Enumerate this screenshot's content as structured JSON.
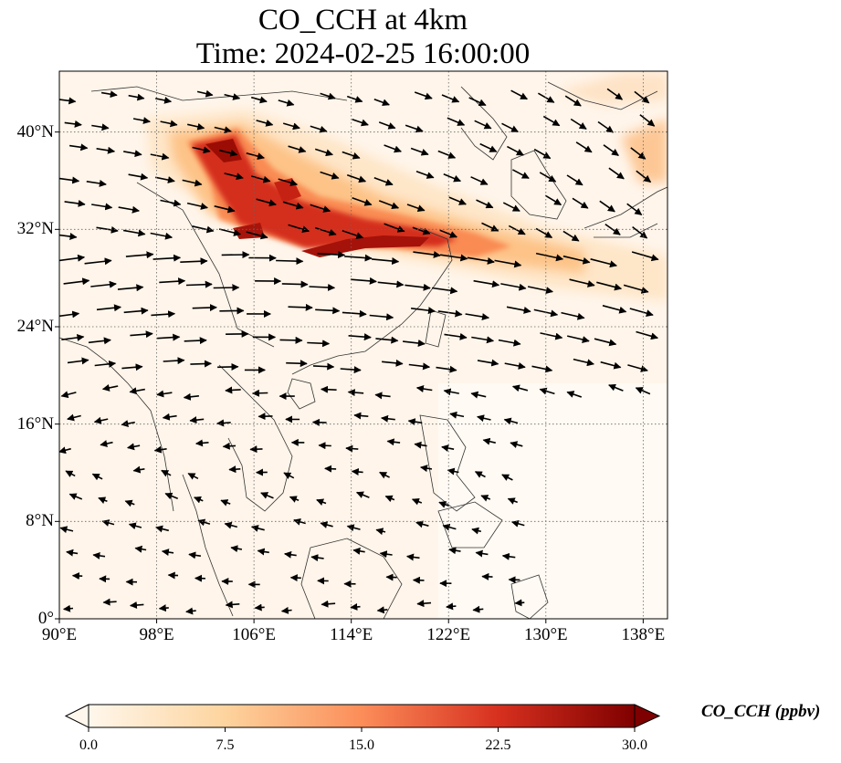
{
  "title": "CO_CCH at 4km",
  "subtitle": "Time: 2024-02-25 16:00:00",
  "map": {
    "lon_range": [
      90,
      140
    ],
    "lat_range": [
      0,
      45
    ],
    "x_ticks": [
      {
        "lon": 90,
        "label": "90°E"
      },
      {
        "lon": 98,
        "label": "98°E"
      },
      {
        "lon": 106,
        "label": "106°E"
      },
      {
        "lon": 114,
        "label": "114°E"
      },
      {
        "lon": 122,
        "label": "122°E"
      },
      {
        "lon": 130,
        "label": "130°E"
      },
      {
        "lon": 138,
        "label": "138°E"
      }
    ],
    "y_ticks": [
      {
        "lat": 0,
        "label": "0°"
      },
      {
        "lat": 8,
        "label": "8°N"
      },
      {
        "lat": 16,
        "label": "16°N"
      },
      {
        "lat": 24,
        "label": "24°N"
      },
      {
        "lat": 32,
        "label": "32°N"
      },
      {
        "lat": 40,
        "label": "40°N"
      }
    ],
    "gridlines": true,
    "wind_vectors": true,
    "plume_description_levels_ppbv": [
      7.5,
      15,
      22.5,
      30
    ]
  },
  "colorbar": {
    "label": "CO_CCH (ppbv)",
    "min": 0,
    "max": 30,
    "extend": "both",
    "colormap": "OrRd",
    "ticks": [
      {
        "value": 0,
        "label": "0.0"
      },
      {
        "value": 7.5,
        "label": "7.5"
      },
      {
        "value": 15,
        "label": "15.0"
      },
      {
        "value": 22.5,
        "label": "22.5"
      },
      {
        "value": 30,
        "label": "30.0"
      }
    ]
  }
}
